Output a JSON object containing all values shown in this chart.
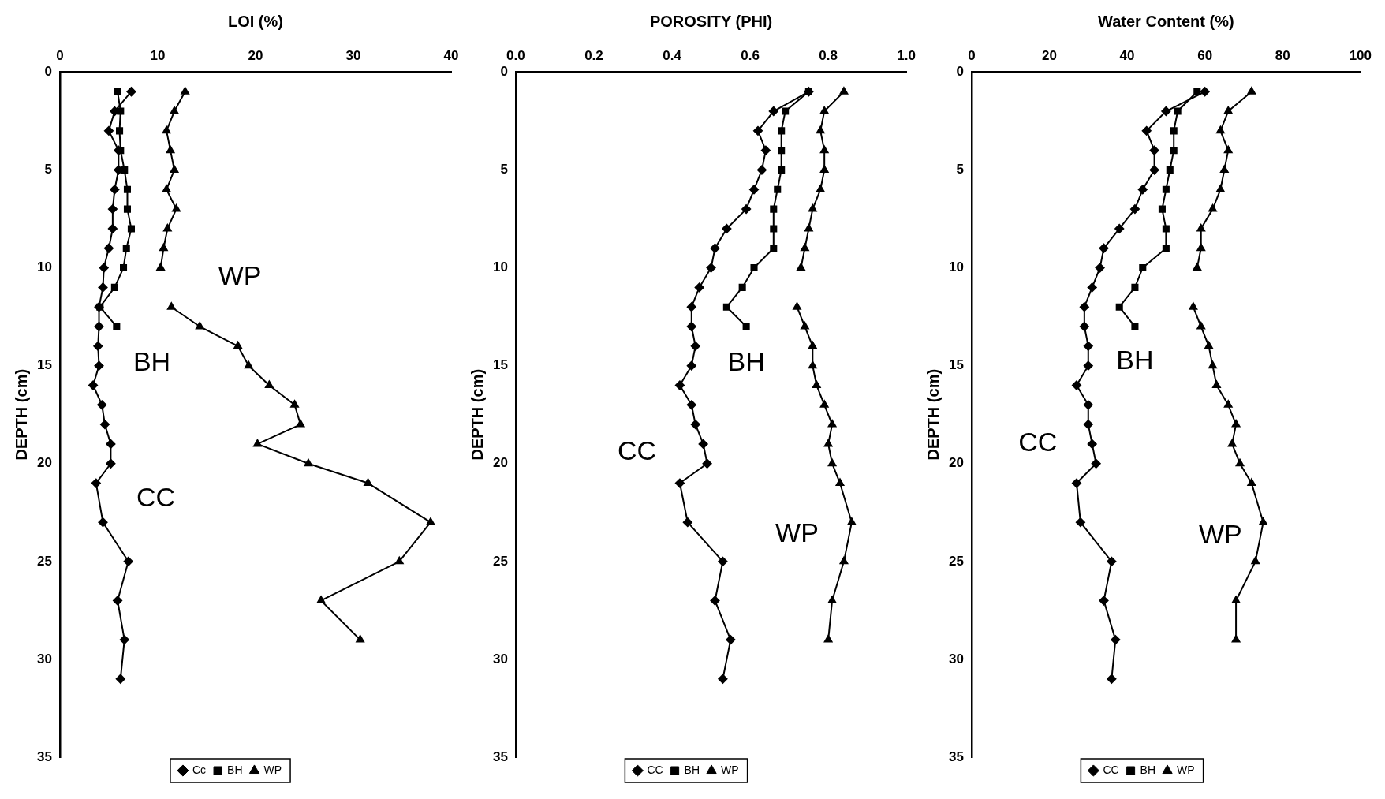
{
  "chart_data": [
    {
      "type": "line",
      "xlabel": "LOI (%)",
      "ylabel": "DEPTH (cm)",
      "xlim": [
        0,
        40
      ],
      "xticks": [
        0,
        10,
        20,
        30,
        40
      ],
      "ylim": [
        35,
        0
      ],
      "yticks": [
        0,
        5,
        10,
        15,
        20,
        25,
        30,
        35
      ],
      "legend": "bottom",
      "series": [
        {
          "name": "Cc",
          "color": "#000000",
          "marker": "diamond",
          "x": [
            7.3,
            5.6,
            5.0,
            6.0,
            6.0,
            5.6,
            5.4,
            5.4,
            5.0,
            4.5,
            4.4,
            4.0,
            4.0,
            3.9,
            4.0,
            3.4,
            4.3,
            4.6,
            5.2,
            5.2,
            3.7,
            4.4,
            7.0,
            5.9,
            6.6,
            6.2
          ],
          "values": [
            1,
            2,
            3,
            4,
            5,
            6,
            7,
            8,
            9,
            10,
            11,
            12,
            13,
            14,
            15,
            16,
            17,
            18,
            19,
            20,
            21,
            23,
            25,
            27,
            29,
            31
          ]
        },
        {
          "name": "BH",
          "color": "#000000",
          "marker": "square",
          "x": [
            5.9,
            6.2,
            6.1,
            6.2,
            6.6,
            6.9,
            6.9,
            7.3,
            6.8,
            6.5,
            5.6,
            4.1,
            5.8
          ],
          "values": [
            1,
            2,
            3,
            4,
            5,
            6,
            7,
            8,
            9,
            10,
            11,
            12,
            13
          ]
        },
        {
          "name": "WP",
          "color": "#000000",
          "marker": "triangle",
          "x": [
            12.8,
            11.7,
            10.9,
            11.3,
            11.7,
            10.9,
            11.9,
            11.0,
            10.6,
            10.3,
            null,
            11.4,
            14.3,
            18.2,
            19.3,
            21.4,
            24.0,
            24.6,
            20.2,
            25.4,
            31.5,
            37.9,
            34.7,
            26.7,
            30.7
          ],
          "values": [
            1,
            2,
            3,
            4,
            5,
            6,
            7,
            8,
            9,
            10,
            null,
            12,
            13,
            14,
            15,
            16,
            17,
            18,
            19,
            20,
            21,
            23,
            25,
            27,
            29
          ]
        }
      ],
      "annotations": [
        "WP",
        "BH",
        "CC"
      ]
    },
    {
      "type": "line",
      "xlabel": "POROSITY (PHI)",
      "ylabel": "DEPTH (cm)",
      "xlim": [
        0,
        1
      ],
      "xticks": [
        {
          "value": 0,
          "label": "0.0"
        },
        {
          "value": 0.2,
          "label": "0.2"
        },
        {
          "value": 0.4,
          "label": "0.4"
        },
        {
          "value": 0.6,
          "label": "0.6"
        },
        {
          "value": 0.8,
          "label": "0.8"
        },
        {
          "value": 1,
          "label": "1.0"
        }
      ],
      "ylim": [
        35,
        0
      ],
      "yticks": [
        0,
        5,
        10,
        15,
        20,
        25,
        30,
        35
      ],
      "legend": "bottom",
      "series": [
        {
          "name": "CC",
          "color": "#000000",
          "marker": "diamond",
          "x": [
            0.75,
            0.66,
            0.62,
            0.64,
            0.63,
            0.61,
            0.59,
            0.54,
            0.51,
            0.5,
            0.47,
            0.45,
            0.45,
            0.46,
            0.45,
            0.42,
            0.45,
            0.46,
            0.48,
            0.49,
            0.42,
            0.44,
            0.53,
            0.51,
            0.55,
            0.53
          ],
          "values": [
            1,
            2,
            3,
            4,
            5,
            6,
            7,
            8,
            9,
            10,
            11,
            12,
            13,
            14,
            15,
            16,
            17,
            18,
            19,
            20,
            21,
            23,
            25,
            27,
            29,
            31
          ]
        },
        {
          "name": "BH",
          "color": "#000000",
          "marker": "square",
          "x": [
            0.75,
            0.69,
            0.68,
            0.68,
            0.68,
            0.67,
            0.66,
            0.66,
            0.66,
            0.61,
            0.58,
            0.54,
            0.59
          ],
          "values": [
            1,
            2,
            3,
            4,
            5,
            6,
            7,
            8,
            9,
            10,
            11,
            12,
            13
          ]
        },
        {
          "name": "WP",
          "color": "#000000",
          "marker": "triangle",
          "x": [
            0.84,
            0.79,
            0.78,
            0.79,
            0.79,
            0.78,
            0.76,
            0.75,
            0.74,
            0.73,
            null,
            0.72,
            0.74,
            0.76,
            0.76,
            0.77,
            0.79,
            0.81,
            0.8,
            0.81,
            0.83,
            0.86,
            0.84,
            0.81,
            0.8
          ],
          "values": [
            1,
            2,
            3,
            4,
            5,
            6,
            7,
            8,
            9,
            10,
            null,
            12,
            13,
            14,
            15,
            16,
            17,
            18,
            19,
            20,
            21,
            23,
            25,
            27,
            29
          ]
        }
      ],
      "annotations": [
        "BH",
        "CC",
        "WP"
      ]
    },
    {
      "type": "line",
      "xlabel": "Water Content (%)",
      "ylabel": "DEPTH (cm)",
      "xlim": [
        0,
        100
      ],
      "xticks": [
        0,
        20,
        40,
        60,
        80,
        100
      ],
      "ylim": [
        35,
        0
      ],
      "yticks": [
        0,
        5,
        10,
        15,
        20,
        25,
        30,
        35
      ],
      "legend": "bottom",
      "series": [
        {
          "name": "CC",
          "color": "#000000",
          "marker": "diamond",
          "x": [
            60,
            50,
            45,
            47,
            47,
            44,
            42,
            38,
            34,
            33,
            31,
            29,
            29,
            30,
            30,
            27,
            30,
            30,
            31,
            32,
            27,
            28,
            36,
            34,
            37,
            36
          ],
          "values": [
            1,
            2,
            3,
            4,
            5,
            6,
            7,
            8,
            9,
            10,
            11,
            12,
            13,
            14,
            15,
            16,
            17,
            18,
            19,
            20,
            21,
            23,
            25,
            27,
            29,
            31
          ]
        },
        {
          "name": "BH",
          "color": "#000000",
          "marker": "square",
          "x": [
            58,
            53,
            52,
            52,
            51,
            50,
            49,
            50,
            50,
            44,
            42,
            38,
            42
          ],
          "values": [
            1,
            2,
            3,
            4,
            5,
            6,
            7,
            8,
            9,
            10,
            11,
            12,
            13
          ]
        },
        {
          "name": "WP",
          "color": "#000000",
          "marker": "triangle",
          "x": [
            72,
            66,
            64,
            66,
            65,
            64,
            62,
            59,
            59,
            58,
            null,
            57,
            59,
            61,
            62,
            63,
            66,
            68,
            67,
            69,
            72,
            75,
            73,
            68,
            68
          ],
          "values": [
            1,
            2,
            3,
            4,
            5,
            6,
            7,
            8,
            9,
            10,
            null,
            12,
            13,
            14,
            15,
            16,
            17,
            18,
            19,
            20,
            21,
            23,
            25,
            27,
            29
          ]
        }
      ],
      "annotations": [
        "BH",
        "CC",
        "WP"
      ]
    }
  ]
}
